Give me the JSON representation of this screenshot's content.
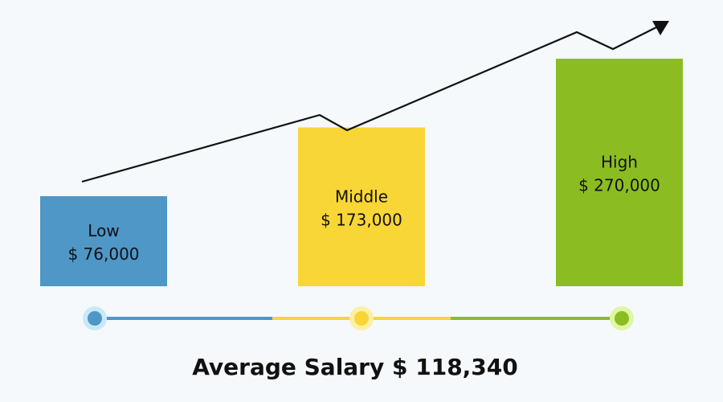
{
  "chart_data": {
    "type": "bar",
    "categories": [
      "Low",
      "Middle",
      "High"
    ],
    "values": [
      76000,
      173000,
      270000
    ],
    "value_labels": [
      "$ 76,000",
      "$ 173,000",
      "$ 270,000"
    ],
    "title": "",
    "xlabel": "",
    "ylabel": "",
    "ylim": [
      0,
      290000
    ],
    "colors": [
      "#4e97c7",
      "#f8d636",
      "#8bbd23"
    ],
    "dot_halo_colors": [
      "#c9e9f8",
      "#fbf0a6",
      "#dff5a7"
    ],
    "grid": false,
    "legend": "none",
    "trend_arrow": true
  },
  "summary": {
    "text": "Average Salary $ 118,340"
  }
}
